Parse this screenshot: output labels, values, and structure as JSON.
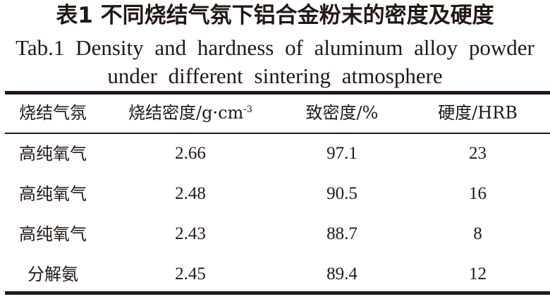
{
  "caption": {
    "cn": "表1 不同烧结气氛下铝合金粉末的密度及硬度",
    "en_line1": "Tab.1 Density and hardness of aluminum alloy powder",
    "en_line2": "under different sintering atmosphere"
  },
  "table": {
    "headers": [
      "烧结气氛",
      "烧结密度/g·cm",
      "致密度/%",
      "硬度/HRB"
    ],
    "density_unit_exponent": "-3",
    "rows": [
      [
        "高纯氧气",
        "2.66",
        "97.1",
        "23"
      ],
      [
        "高纯氧气",
        "2.48",
        "90.5",
        "16"
      ],
      [
        "高纯氧气",
        "2.43",
        "88.7",
        "8"
      ],
      [
        "分解氨",
        "2.45",
        "89.4",
        "12"
      ]
    ]
  }
}
